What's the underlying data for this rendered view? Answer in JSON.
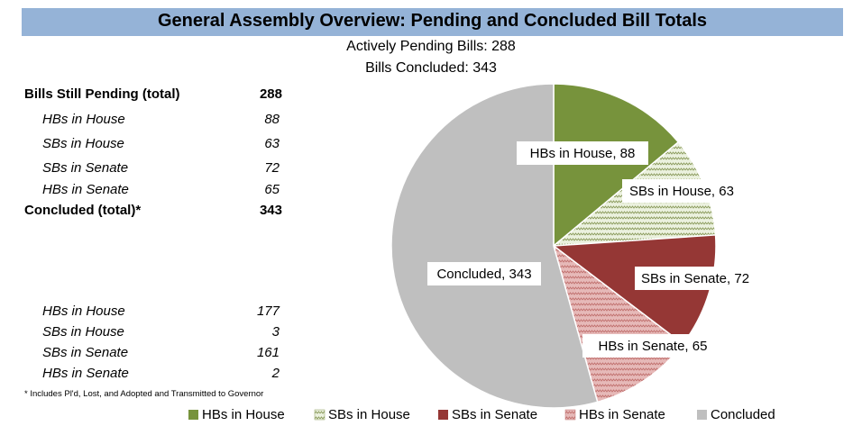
{
  "title": "General Assembly Overview:  Pending and Concluded Bill Totals",
  "subtitle_pending": "Actively Pending Bills:  288",
  "subtitle_concluded": "Bills Concluded:  343",
  "table": {
    "pending_total": {
      "label": "Bills Still Pending (total)",
      "value": "288"
    },
    "pending_rows": [
      {
        "label": "HBs in House",
        "value": "88"
      },
      {
        "label": "SBs in House",
        "value": "63"
      },
      {
        "label": "SBs in Senate",
        "value": "72"
      },
      {
        "label": "HBs in Senate",
        "value": "65"
      }
    ],
    "concluded_total": {
      "label": "Concluded (total)*",
      "value": "343"
    },
    "concluded_rows": [
      {
        "label": "HBs in House",
        "value": "177"
      },
      {
        "label": "SBs in House",
        "value": "3"
      },
      {
        "label": "SBs in Senate",
        "value": "161"
      },
      {
        "label": "HBs in Senate",
        "value": "2"
      }
    ]
  },
  "footnote": "* Includes Pl'd, Lost, and Adopted and Transmitted to Governor",
  "colors": {
    "hbs_house": "#77933c",
    "sbs_house": "#d7e4bd",
    "sbs_senate": "#953735",
    "hbs_senate": "#d99694",
    "concluded": "#bfbfbf",
    "title_bar": "#95b3d7"
  },
  "chart_data": {
    "type": "pie",
    "title": "",
    "slices": [
      {
        "label": "HBs in House",
        "value": 88,
        "data_label": "HBs in House, 88"
      },
      {
        "label": "SBs in House",
        "value": 63,
        "data_label": "SBs in House, 63"
      },
      {
        "label": "SBs in Senate",
        "value": 72,
        "data_label": "SBs in Senate, 72"
      },
      {
        "label": "HBs in Senate",
        "value": 65,
        "data_label": "HBs in Senate, 65"
      },
      {
        "label": "Concluded",
        "value": 343,
        "data_label": "Concluded, 343"
      }
    ],
    "start_angle": "12 o'clock",
    "direction": "clockwise",
    "legend_position": "bottom"
  }
}
